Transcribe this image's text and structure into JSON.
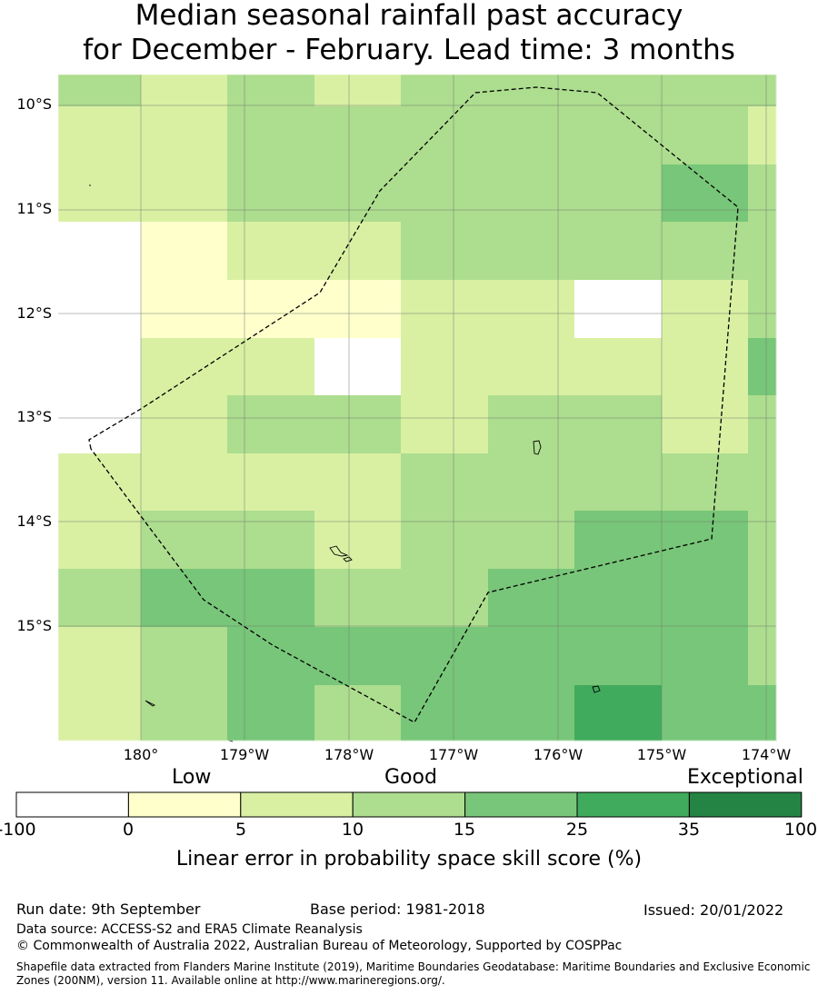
{
  "title": {
    "line1": "Median seasonal rainfall past accuracy",
    "line2": "for December - February. Lead time: 3 months"
  },
  "map": {
    "lat_labels": [
      "10°S",
      "11°S",
      "12°S",
      "13°S",
      "14°S",
      "15°S"
    ],
    "lat_values": [
      -10,
      -11,
      -12,
      -13,
      -14,
      -15
    ],
    "lon_labels": [
      "180°",
      "179°W",
      "178°W",
      "177°W",
      "176°W",
      "175°W",
      "174°W"
    ],
    "lon_values": [
      180,
      -179,
      -178,
      -177,
      -176,
      -175,
      -174
    ],
    "grid_lines": true,
    "boundary_style": "dashed",
    "grid_rows_north_to_south": [
      [
        3,
        2,
        3,
        2,
        3,
        3,
        3,
        3,
        3
      ],
      [
        2,
        2,
        3,
        3,
        3,
        3,
        3,
        3,
        2
      ],
      [
        2,
        2,
        3,
        3,
        3,
        3,
        3,
        4,
        3
      ],
      [
        0,
        1,
        2,
        2,
        3,
        3,
        3,
        3,
        3
      ],
      [
        0,
        1,
        1,
        1,
        2,
        2,
        0,
        2,
        3
      ],
      [
        0,
        2,
        2,
        0,
        2,
        2,
        2,
        2,
        4
      ],
      [
        0,
        2,
        3,
        3,
        2,
        3,
        3,
        2,
        3
      ],
      [
        2,
        2,
        2,
        2,
        3,
        3,
        3,
        3,
        3
      ],
      [
        2,
        3,
        3,
        2,
        3,
        3,
        4,
        4,
        3
      ],
      [
        3,
        4,
        4,
        3,
        3,
        4,
        4,
        4,
        3
      ],
      [
        2,
        3,
        4,
        4,
        4,
        4,
        4,
        4,
        3
      ],
      [
        2,
        3,
        4,
        3,
        4,
        4,
        5,
        4,
        4
      ]
    ]
  },
  "legend": {
    "categories": [
      "Low",
      "Good",
      "Exceptional"
    ],
    "boundaries": [
      "-100",
      "0",
      "5",
      "10",
      "15",
      "25",
      "35",
      "100"
    ],
    "colors": [
      "#ffffff",
      "#ffffcc",
      "#d9f0a3",
      "#addd8e",
      "#78c679",
      "#41ab5d",
      "#238443"
    ],
    "label": "Linear error in probability space skill score (%)"
  },
  "footer": {
    "run_date": "Run date: 9th September",
    "base_period": "Base period: 1981-2018",
    "issued": "Issued: 20/01/2022",
    "data_source": "Data source: ACCESS-S2 and ERA5 Climate Reanalysis",
    "copyright": "© Commonwealth of Australia 2022, Australian Bureau of Meteorology, Supported by COSPPac",
    "shapefile_note": "Shapefile data extracted from Flanders Marine Institute (2019), Maritime Boundaries Geodatabase: Maritime Boundaries and Exclusive Economic Zones (200NM), version 11. Available online at http://www.marineregions.org/."
  }
}
